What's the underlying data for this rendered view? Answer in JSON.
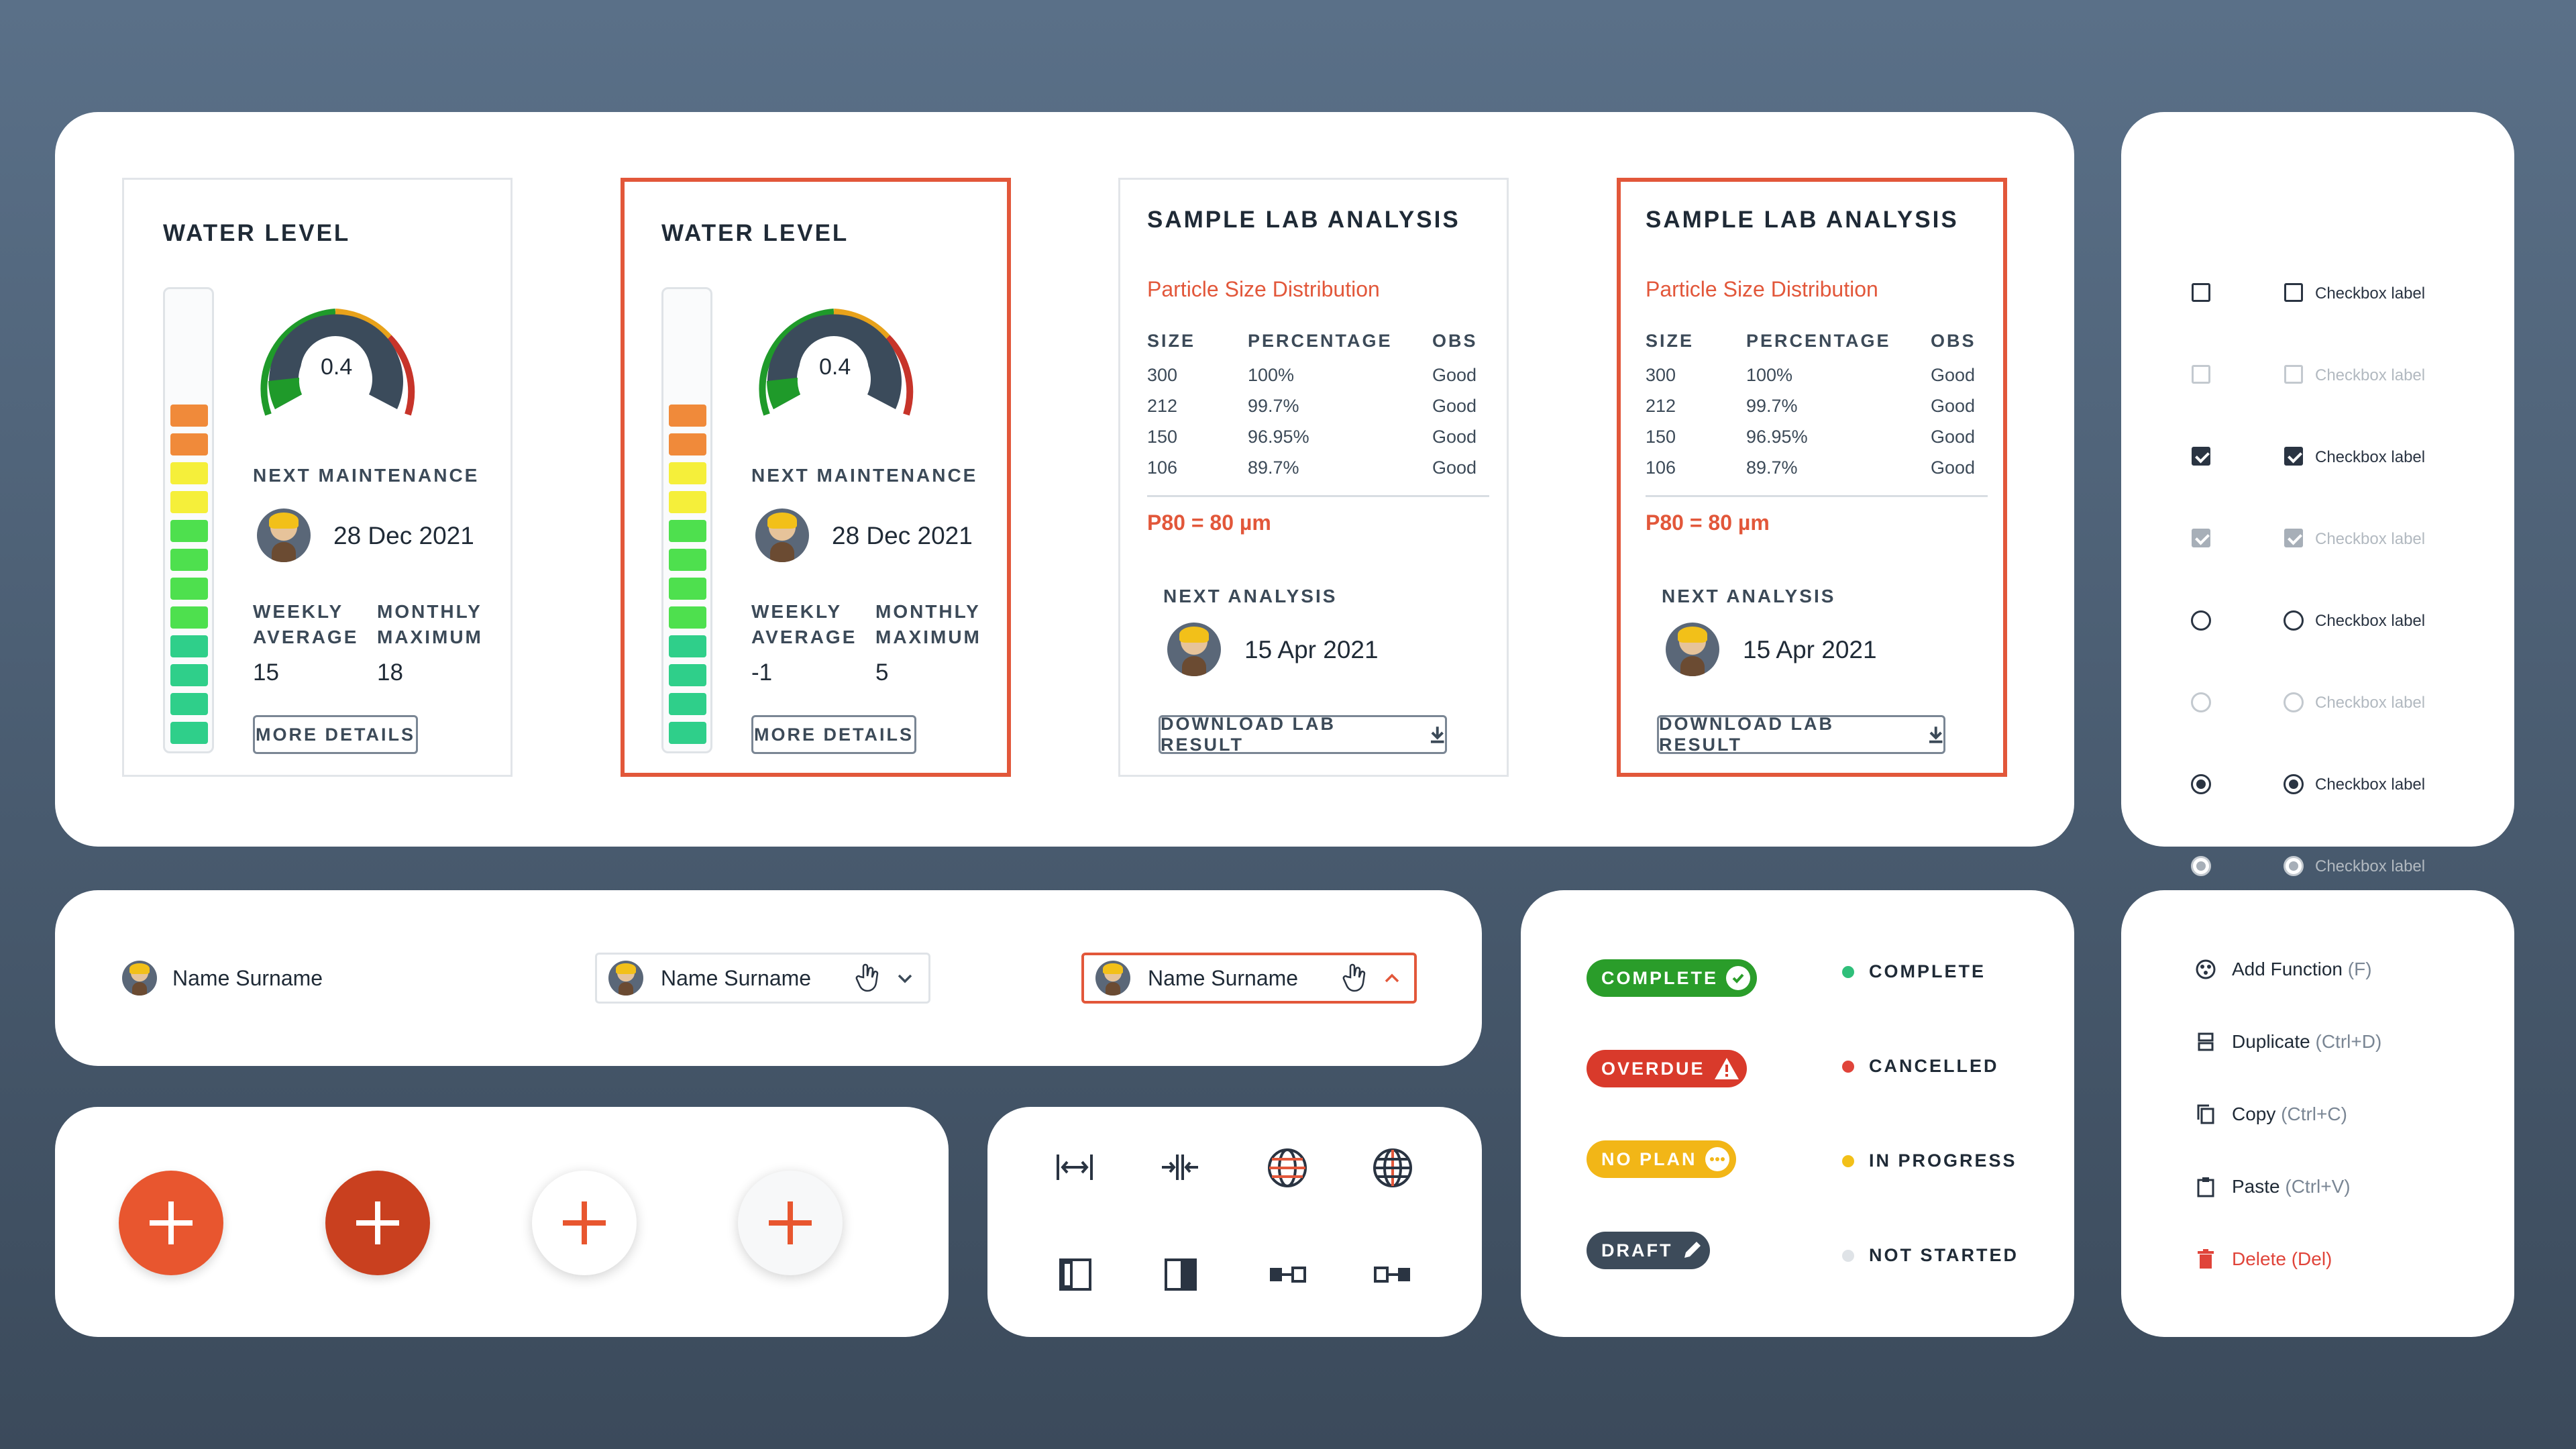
{
  "water_cards": [
    {
      "title": "WATER LEVEL",
      "gauge_value": "0.4",
      "next_maintenance_label": "NEXT MAINTENANCE",
      "date": "28 Dec 2021",
      "weekly_label_1": "WEEKLY",
      "weekly_label_2": "AVERAGE",
      "monthly_label_1": "MONTHLY",
      "monthly_label_2": "MAXIMUM",
      "weekly_value": "15",
      "monthly_value": "18",
      "button": "MORE DETAILS"
    },
    {
      "title": "WATER LEVEL",
      "gauge_value": "0.4",
      "next_maintenance_label": "NEXT MAINTENANCE",
      "date": "28 Dec 2021",
      "weekly_label_1": "WEEKLY",
      "weekly_label_2": "AVERAGE",
      "monthly_label_1": "MONTHLY",
      "monthly_label_2": "MAXIMUM",
      "weekly_value": "-1",
      "monthly_value": "5",
      "button": "MORE DETAILS"
    }
  ],
  "lab_cards": [
    {
      "title": "SAMPLE LAB ANALYSIS",
      "subtitle": "Particle Size Distribution",
      "headers": [
        "SIZE",
        "PERCENTAGE",
        "OBS"
      ],
      "rows": [
        [
          "300",
          "100%",
          "Good"
        ],
        [
          "212",
          "99.7%",
          "Good"
        ],
        [
          "150",
          "96.95%",
          "Good"
        ],
        [
          "106",
          "89.7%",
          "Good"
        ]
      ],
      "p80": "P80 = 80 µm",
      "next_label": "NEXT ANALYSIS",
      "date": "15 Apr 2021",
      "button": "DOWNLOAD LAB RESULT"
    },
    {
      "title": "SAMPLE LAB ANALYSIS",
      "subtitle": "Particle Size Distribution",
      "headers": [
        "SIZE",
        "PERCENTAGE",
        "OBS"
      ],
      "rows": [
        [
          "300",
          "100%",
          "Good"
        ],
        [
          "212",
          "99.7%",
          "Good"
        ],
        [
          "150",
          "96.95%",
          "Good"
        ],
        [
          "106",
          "89.7%",
          "Good"
        ]
      ],
      "p80": "P80 = 80 µm",
      "next_label": "NEXT ANALYSIS",
      "date": "15 Apr 2021",
      "button": "DOWNLOAD LAB RESULT"
    }
  ],
  "checkbox_label": "Checkbox label",
  "name_selectors": {
    "plain": "Name Surname",
    "dropdown": "Name Surname",
    "dropdown_active": "Name Surname"
  },
  "statuses": {
    "pills": [
      {
        "label": "COMPLETE",
        "color": "#2a9d2a"
      },
      {
        "label": "OVERDUE",
        "color": "#d93a2b"
      },
      {
        "label": "NO PLAN",
        "color": "#f2b617"
      },
      {
        "label": "DRAFT",
        "color": "#3d4b5a"
      }
    ],
    "dots": [
      {
        "label": "COMPLETE",
        "color": "#2fbf7a"
      },
      {
        "label": "CANCELLED",
        "color": "#e0443a"
      },
      {
        "label": "IN PROGRESS",
        "color": "#f2c019"
      },
      {
        "label": "NOT STARTED",
        "color": "#dfe3e7"
      }
    ]
  },
  "menu": [
    {
      "label": "Add Function",
      "shortcut": "(F)",
      "icon": "function-icon"
    },
    {
      "label": "Duplicate",
      "shortcut": "(Ctrl+D)",
      "icon": "duplicate-icon"
    },
    {
      "label": "Copy",
      "shortcut": "(Ctrl+C)",
      "icon": "copy-icon"
    },
    {
      "label": "Paste",
      "shortcut": "(Ctrl+V)",
      "icon": "paste-icon"
    },
    {
      "label": "Delete",
      "shortcut": "(Del)",
      "icon": "trash-icon",
      "color": "#e0443a"
    }
  ],
  "colors": {
    "accent": "#e2573a",
    "accent_dark": "#c9401f"
  }
}
